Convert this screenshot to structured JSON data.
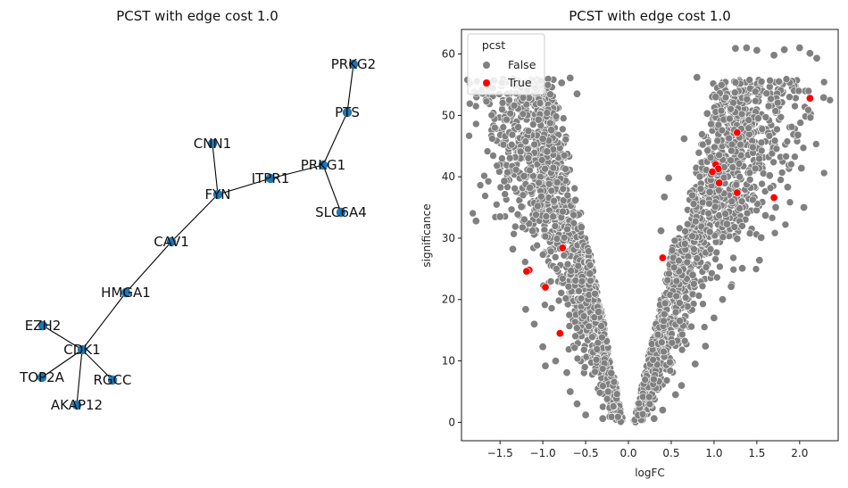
{
  "network": {
    "title": "PCST with edge cost 1.0",
    "node_color": "#1f77b4",
    "edge_color": "#000000",
    "nodes": [
      "PRKG2",
      "PTS",
      "PRKG1",
      "SLC6A4",
      "ITPR1",
      "CNN1",
      "FYN",
      "CAV1",
      "HMGA1",
      "CDK1",
      "EZH2",
      "TOP2A",
      "AKAP12",
      "RGCC"
    ],
    "edges": [
      [
        "PRKG2",
        "PTS"
      ],
      [
        "PTS",
        "PRKG1"
      ],
      [
        "PRKG1",
        "SLC6A4"
      ],
      [
        "PRKG1",
        "ITPR1"
      ],
      [
        "ITPR1",
        "FYN"
      ],
      [
        "CNN1",
        "FYN"
      ],
      [
        "FYN",
        "CAV1"
      ],
      [
        "CAV1",
        "HMGA1"
      ],
      [
        "HMGA1",
        "CDK1"
      ],
      [
        "CDK1",
        "EZH2"
      ],
      [
        "CDK1",
        "TOP2A"
      ],
      [
        "CDK1",
        "AKAP12"
      ],
      [
        "CDK1",
        "RGCC"
      ]
    ]
  },
  "chart_data": {
    "type": "scatter",
    "title": "PCST with edge cost 1.0",
    "xlabel": "logFC",
    "ylabel": "significance",
    "xlim": [
      -1.95,
      2.45
    ],
    "ylim": [
      -3,
      64
    ],
    "xticks": [
      -1.5,
      -1.0,
      -0.5,
      0.0,
      0.5,
      1.0,
      1.5,
      2.0
    ],
    "xtick_labels": [
      "−1.5",
      "−1.0",
      "−0.5",
      "0.0",
      "0.5",
      "1.0",
      "1.5",
      "2.0"
    ],
    "yticks": [
      0,
      10,
      20,
      30,
      40,
      50,
      60
    ],
    "ytick_labels": [
      "0",
      "10",
      "20",
      "30",
      "40",
      "50",
      "60"
    ],
    "legend": {
      "title": "pcst",
      "location": "upper left",
      "entries": [
        {
          "label": "False",
          "color": "#808080"
        },
        {
          "label": "True",
          "color": "#ff0000"
        }
      ]
    },
    "series": [
      {
        "name": "False",
        "color": "#808080",
        "note": "~thousands of genes forming a V-shaped volcano; representative sample of outlying points",
        "points": [
          [
            -1.78,
            32.8
          ],
          [
            -1.5,
            33.5
          ],
          [
            -1.45,
            39.3
          ],
          [
            -1.35,
            28.2
          ],
          [
            -1.25,
            35.1
          ],
          [
            -1.22,
            40.1
          ],
          [
            -1.15,
            38.2
          ],
          [
            -1.12,
            31.2
          ],
          [
            -1.05,
            49.3
          ],
          [
            -1.0,
            46.2
          ],
          [
            -0.95,
            44.1
          ],
          [
            -0.9,
            47.6
          ],
          [
            -0.78,
            55.3
          ],
          [
            -0.68,
            56.1
          ],
          [
            -0.6,
            53.5
          ],
          [
            -1.2,
            18.4
          ],
          [
            -1.1,
            16.0
          ],
          [
            -1.0,
            12.3
          ],
          [
            -0.97,
            9.2
          ],
          [
            -0.85,
            10.0
          ],
          [
            -0.72,
            8.1
          ],
          [
            -0.68,
            5.0
          ],
          [
            -0.6,
            3.0
          ],
          [
            -0.5,
            1.2
          ],
          [
            -0.3,
            0.6
          ],
          [
            0.3,
            0.6
          ],
          [
            0.4,
            2.0
          ],
          [
            0.55,
            4.5
          ],
          [
            0.62,
            6.0
          ],
          [
            0.78,
            9.5
          ],
          [
            0.9,
            12.4
          ],
          [
            1.0,
            17.0
          ],
          [
            1.1,
            20.0
          ],
          [
            1.2,
            22.1
          ],
          [
            1.33,
            25.1
          ],
          [
            1.53,
            26.4
          ],
          [
            1.55,
            30.1
          ],
          [
            1.6,
            33.7
          ],
          [
            1.65,
            40.2
          ],
          [
            1.72,
            35.0
          ],
          [
            1.86,
            38.3
          ],
          [
            2.05,
            35.0
          ],
          [
            2.02,
            41.4
          ],
          [
            1.98,
            46.8
          ],
          [
            2.12,
            60.1
          ],
          [
            2.2,
            59.3
          ],
          [
            2.28,
            52.9
          ],
          [
            2.0,
            61.0
          ],
          [
            1.82,
            60.7
          ],
          [
            1.7,
            59.8
          ],
          [
            1.5,
            60.6
          ],
          [
            1.38,
            61.0
          ],
          [
            1.25,
            60.9
          ],
          [
            1.02,
            53.0
          ],
          [
            0.92,
            50.3
          ],
          [
            0.8,
            56.2
          ],
          [
            0.65,
            46.2
          ],
          [
            0.47,
            39.8
          ],
          [
            0.42,
            36.7
          ],
          [
            0.38,
            31.2
          ],
          [
            1.15,
            32.3
          ],
          [
            1.27,
            29.9
          ],
          [
            0.95,
            37.5
          ],
          [
            0.75,
            24.0
          ],
          [
            0.6,
            16.5
          ],
          [
            -0.45,
            24.2
          ],
          [
            -0.55,
            31.8
          ],
          [
            -0.62,
            36.2
          ],
          [
            -0.35,
            18.0
          ],
          [
            -0.2,
            8.0
          ]
        ]
      },
      {
        "name": "True",
        "color": "#ff0000",
        "points": [
          [
            2.12,
            52.8
          ],
          [
            1.27,
            47.2
          ],
          [
            1.02,
            42.0
          ],
          [
            1.05,
            41.3
          ],
          [
            0.98,
            40.8
          ],
          [
            1.06,
            39.0
          ],
          [
            1.27,
            37.4
          ],
          [
            1.7,
            36.6
          ],
          [
            -0.77,
            28.4
          ],
          [
            -1.16,
            24.8
          ],
          [
            -1.19,
            24.6
          ],
          [
            -0.97,
            22.0
          ],
          [
            -0.8,
            14.5
          ],
          [
            0.4,
            26.8
          ]
        ]
      }
    ]
  }
}
